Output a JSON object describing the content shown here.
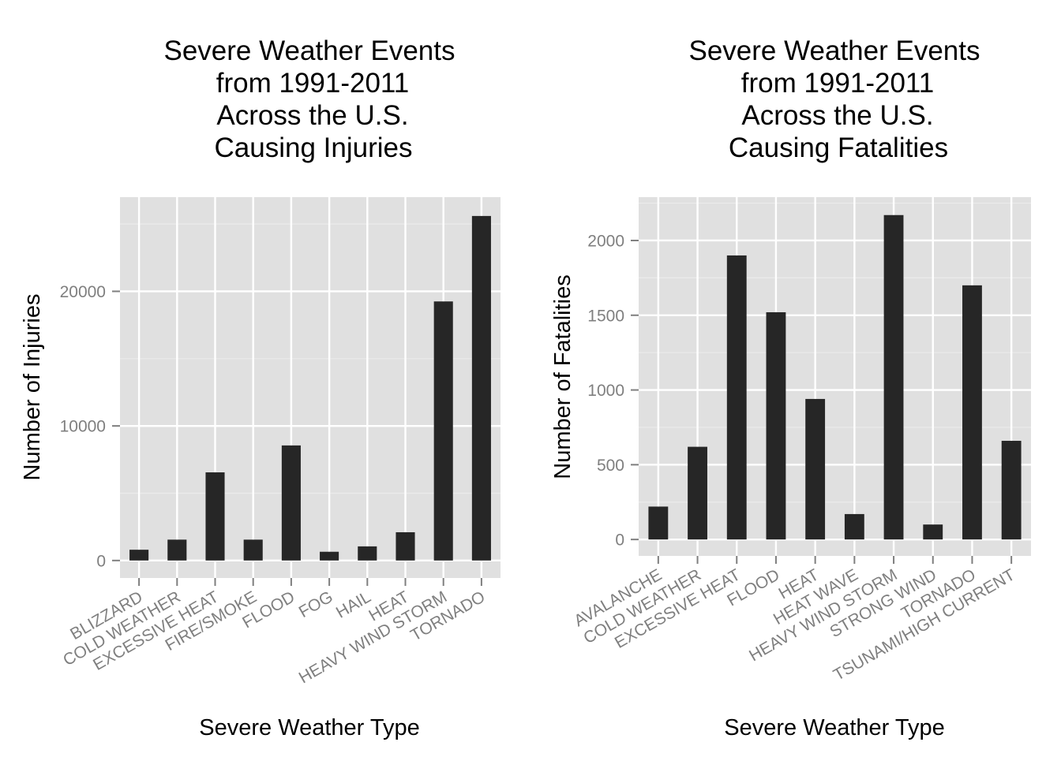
{
  "colors": {
    "panel_background": "#e0e0e0",
    "grid_major": "#ffffff",
    "grid_minor": "#ebebeb",
    "bar_fill": "#262626",
    "tick_color": "#7f7f7f",
    "text_color": "#000000"
  },
  "chart_data": [
    {
      "type": "bar",
      "title_lines": [
        "Severe Weather Events",
        "from 1991-2011",
        "Across the U.S.",
        "Causing Injuries"
      ],
      "xlabel": "Severe Weather Type",
      "ylabel": "Number of Injuries",
      "categories": [
        "BLIZZARD",
        "COLD WEATHER",
        "EXCESSIVE HEAT",
        "FIRE/SMOKE",
        "FLOOD",
        "FOG",
        "HAIL",
        "HEAT",
        "HEAVY WIND STORM",
        "TORNADO"
      ],
      "values": [
        800,
        1550,
        6550,
        1550,
        8550,
        650,
        1050,
        2100,
        19250,
        25600
      ],
      "yticks": [
        0,
        10000,
        20000
      ],
      "ytick_labels": [
        "0",
        "10000",
        "20000"
      ],
      "ylim": [
        -1300,
        27000
      ],
      "grid": true
    },
    {
      "type": "bar",
      "title_lines": [
        "Severe Weather Events",
        "from 1991-2011",
        "Across the U.S.",
        "Causing Fatalities"
      ],
      "xlabel": "Severe Weather Type",
      "ylabel": "Number of Fatalities",
      "categories": [
        "AVALANCHE",
        "COLD WEATHER",
        "EXCESSIVE HEAT",
        "FLOOD",
        "HEAT",
        "HEAT WAVE",
        "HEAVY WIND STORM",
        "STRONG WIND",
        "TORNADO",
        "TSUNAMI/HIGH CURRENT"
      ],
      "values": [
        220,
        620,
        1900,
        1520,
        940,
        170,
        2170,
        100,
        1700,
        660
      ],
      "yticks": [
        0,
        500,
        1000,
        1500,
        2000
      ],
      "ytick_labels": [
        "0",
        "500",
        "1000",
        "1500",
        "2000"
      ],
      "ylim": [
        -110,
        2290
      ],
      "grid": true
    }
  ]
}
